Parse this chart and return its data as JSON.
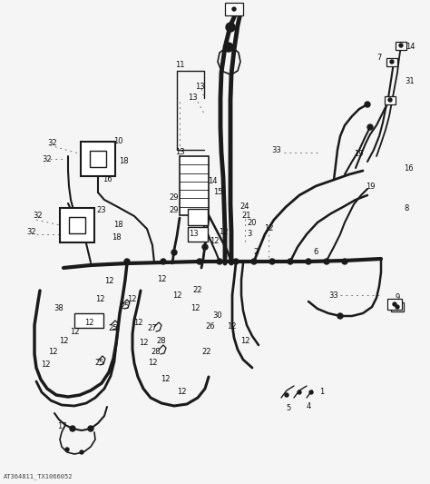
{
  "background_color": "#f5f5f5",
  "line_color": "#1a1a1a",
  "dot_line_color": "#777777",
  "watermark": "AT364811_TX1066052",
  "figure_width": 4.74,
  "figure_height": 5.33,
  "dpi": 100,
  "border_color": "#cccccc",
  "label_fontsize": 6.0,
  "label_color": "#111111"
}
